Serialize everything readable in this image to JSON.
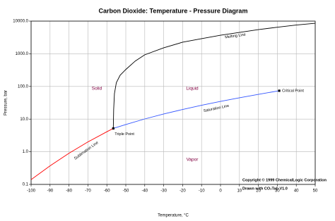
{
  "chart_data": {
    "type": "line",
    "title": "Carbon Dioxide: Temperature - Pressure Diagram",
    "x_label": "Temperature, °C",
    "y_label": "Pressure, bar",
    "log_y": true,
    "grid": true,
    "xlim": [
      -100,
      50
    ],
    "xticks": [
      -100,
      -90,
      -80,
      -70,
      -60,
      -50,
      -40,
      -30,
      -20,
      -10,
      0,
      10,
      20,
      30,
      40,
      50
    ],
    "ylim": [
      0.1,
      10000
    ],
    "yticks": [
      0.1,
      {
        "value": 1,
        "label": "1.0"
      },
      {
        "value": 10,
        "label": "10.0"
      },
      {
        "value": 100,
        "label": "100.0"
      },
      {
        "value": 1000,
        "label": "1000.0"
      },
      {
        "value": 10000,
        "label": "10000.0"
      }
    ],
    "series": [
      {
        "name": "Sublimation Line",
        "color": "#ff0000",
        "x": [
          -100,
          -90,
          -80,
          -70,
          -60,
          -56.6
        ],
        "values": [
          0.14,
          0.37,
          0.9,
          2.0,
          4.1,
          5.18
        ]
      },
      {
        "name": "Saturation Line",
        "color": "#3355ff",
        "x": [
          -56.6,
          -50,
          -40,
          -30,
          -20,
          -10,
          0,
          10,
          20,
          31
        ],
        "values": [
          5.18,
          6.8,
          10.1,
          14.3,
          19.7,
          26.5,
          34.9,
          45.0,
          57.3,
          73.8
        ]
      },
      {
        "name": "Melting Line",
        "color": "#000000",
        "x": [
          -56.6,
          -56.4,
          -56,
          -55,
          -53,
          -50,
          -45,
          -40,
          -30,
          -20,
          -10,
          0,
          10,
          20,
          30,
          40,
          50
        ],
        "values": [
          5.18,
          20,
          60,
          130,
          220,
          330,
          600,
          930,
          1520,
          2260,
          2900,
          3700,
          4500,
          5500,
          6500,
          7600,
          8600
        ]
      }
    ],
    "points": [
      {
        "label": "Triple Point",
        "x": -56.6,
        "y": 5.18
      },
      {
        "label": "Critical Point",
        "x": 31,
        "y": 73.8
      }
    ],
    "regions": [
      "Solid",
      "Liquid",
      "Vapor"
    ],
    "region_color": "#800040",
    "notes": [
      "Copyright © 1999 ChemicalLogic Corporation",
      "Drawn with CO₂Tab V1.0"
    ]
  }
}
